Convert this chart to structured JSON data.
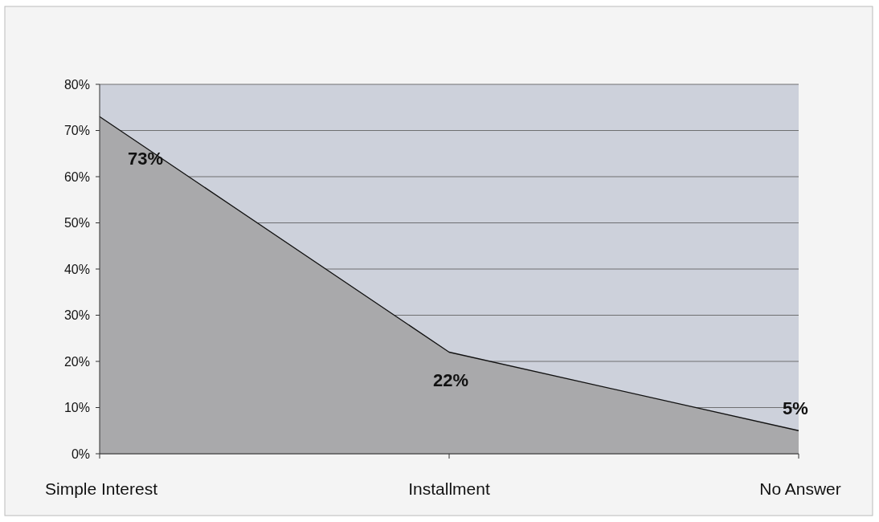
{
  "chart_data": {
    "type": "area",
    "categories": [
      "Simple Interest",
      "Installment",
      "No Answer"
    ],
    "series": [
      {
        "color": "#a9a9ab",
        "values": [
          73,
          22,
          5
        ],
        "value_labels": [
          "73%",
          "22%",
          "5%"
        ]
      }
    ],
    "ylim": [
      0,
      80
    ],
    "yticks": [
      {
        "value": 0,
        "label": "0%"
      },
      {
        "value": 10,
        "label": "10%"
      },
      {
        "value": 20,
        "label": "20%"
      },
      {
        "value": 30,
        "label": "30%"
      },
      {
        "value": 40,
        "label": "40%"
      },
      {
        "value": 50,
        "label": "50%"
      },
      {
        "value": 60,
        "label": "60%"
      },
      {
        "value": 70,
        "label": "70%"
      },
      {
        "value": 80,
        "label": "80%"
      }
    ],
    "grid": "y"
  }
}
